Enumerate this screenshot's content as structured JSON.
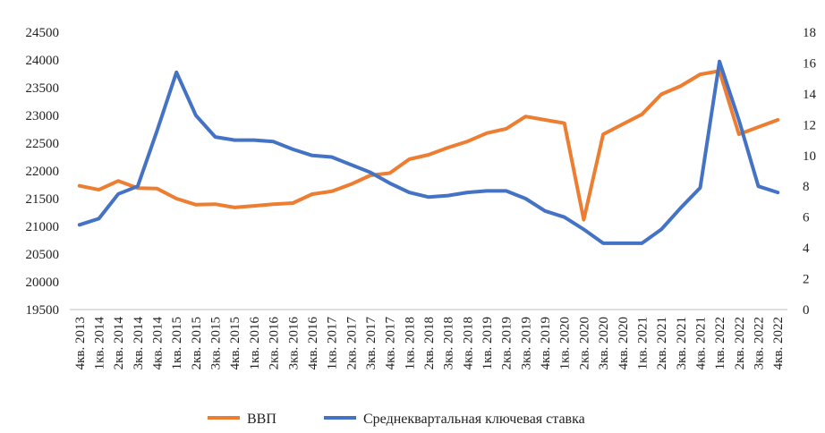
{
  "chart_data": {
    "type": "line",
    "categories": [
      "4кв. 2013",
      "1кв. 2014",
      "2кв. 2014",
      "3кв. 2014",
      "4кв. 2014",
      "1кв. 2015",
      "2кв. 2015",
      "3кв. 2015",
      "4кв. 2015",
      "1кв. 2016",
      "2кв. 2016",
      "3кв. 2016",
      "4кв. 2016",
      "1кв. 2017",
      "2кв. 2017",
      "3кв. 2017",
      "4кв. 2017",
      "1кв. 2018",
      "2кв. 2018",
      "3кв. 2018",
      "4кв. 2018",
      "1кв. 2019",
      "2кв. 2019",
      "3кв. 2019",
      "4кв. 2019",
      "1кв. 2020",
      "2кв. 2020",
      "3кв. 2020",
      "4кв. 2020",
      "1кв. 2021",
      "2кв. 2021",
      "3кв. 2021",
      "4кв. 2021",
      "1кв. 2022",
      "2кв. 2022",
      "3кв. 2022",
      "4кв. 2022"
    ],
    "series": [
      {
        "name": "ВВП",
        "axis": "left",
        "color": "#ED7D31",
        "values": [
          21730,
          21660,
          21820,
          21690,
          21680,
          21500,
          21390,
          21400,
          21340,
          21370,
          21400,
          21420,
          21580,
          21630,
          21760,
          21920,
          21960,
          22210,
          22290,
          22420,
          22530,
          22680,
          22760,
          22980,
          22920,
          22860,
          21120,
          22660,
          22840,
          23020,
          23380,
          23530,
          23740,
          23800,
          22660,
          22790,
          22920
        ]
      },
      {
        "name": "Среднеквартальная ключевая ставка",
        "axis": "right",
        "color": "#4472C4",
        "values": [
          5.5,
          5.9,
          7.5,
          8.0,
          11.6,
          15.4,
          12.6,
          11.2,
          11.0,
          11.0,
          10.9,
          10.4,
          10.0,
          9.9,
          9.4,
          8.9,
          8.2,
          7.6,
          7.3,
          7.4,
          7.6,
          7.7,
          7.7,
          7.2,
          6.4,
          6.0,
          5.2,
          4.3,
          4.3,
          4.3,
          5.2,
          6.6,
          7.9,
          16.1,
          12.3,
          8.0,
          7.6
        ]
      }
    ],
    "y_left": {
      "min": 19500,
      "max": 24500,
      "step": 500
    },
    "y_right": {
      "min": 0,
      "max": 18,
      "step": 2
    },
    "legend_position": "bottom",
    "grid": false
  }
}
